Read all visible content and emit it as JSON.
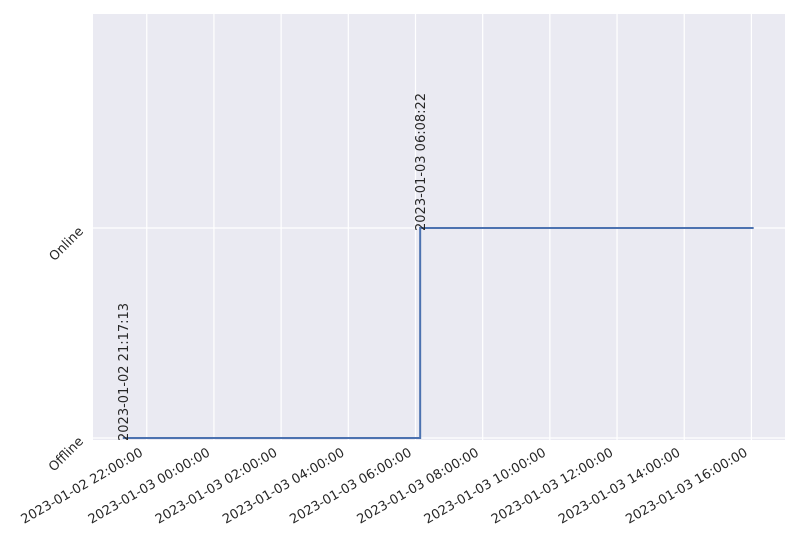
{
  "chart_data": {
    "type": "line",
    "line_style": "step",
    "title": "",
    "xlabel": "",
    "ylabel": "",
    "background": "#eaeaf2",
    "grid": true,
    "grid_color": "#ffffff",
    "line_color": "#4c72b0",
    "legend": "none",
    "xlim": [
      "2023-01-02 20:24:00",
      "2023-01-03 17:00:00"
    ],
    "ylim": [
      "Offline",
      "Online"
    ],
    "y_categories": [
      "Offline",
      "Online"
    ],
    "x_ticks": [
      "2023-01-02 22:00:00",
      "2023-01-03 00:00:00",
      "2023-01-03 02:00:00",
      "2023-01-03 04:00:00",
      "2023-01-03 06:00:00",
      "2023-01-03 08:00:00",
      "2023-01-03 10:00:00",
      "2023-01-03 12:00:00",
      "2023-01-03 14:00:00",
      "2023-01-03 16:00:00"
    ],
    "points": [
      {
        "x": "2023-01-02 21:17:13",
        "y": "Offline"
      },
      {
        "x": "2023-01-03 06:08:22",
        "y": "Online"
      },
      {
        "x": "2023-01-03 16:04:00",
        "y": "Online"
      }
    ],
    "annotations": [
      {
        "text": "2023-01-02 21:17:13",
        "x": "2023-01-02 21:17:13",
        "y": "Offline"
      },
      {
        "text": "2023-01-03 06:08:22",
        "x": "2023-01-03 06:08:22",
        "y": "Online"
      }
    ]
  }
}
